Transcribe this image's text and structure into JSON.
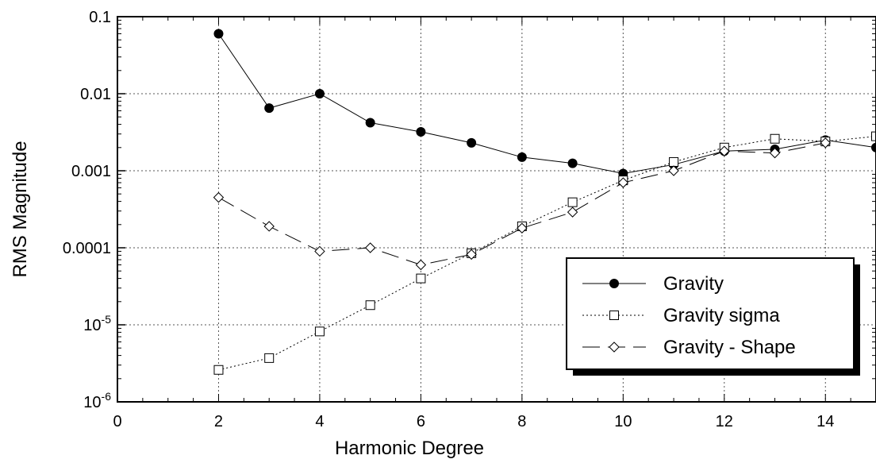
{
  "chart_data": {
    "type": "line",
    "xlabel": "Harmonic Degree",
    "ylabel": "RMS Magnitude",
    "xlim": [
      0,
      15
    ],
    "ylim": [
      1e-06,
      0.1
    ],
    "yscale": "log",
    "grid": true,
    "legend_position": "bottom-right",
    "x_ticks": [
      "0",
      "2",
      "4",
      "6",
      "8",
      "10",
      "12",
      "14"
    ],
    "y_ticks": [
      {
        "base": "10",
        "exp": "-6"
      },
      {
        "base": "10",
        "exp": "-5"
      },
      {
        "base": "0.0001",
        "exp": ""
      },
      {
        "base": "0.001",
        "exp": ""
      },
      {
        "base": "0.01",
        "exp": ""
      },
      {
        "base": "0.1",
        "exp": ""
      }
    ],
    "series": [
      {
        "name": "Gravity",
        "marker": "filled-circle",
        "line": "solid",
        "x": [
          2,
          3,
          4,
          5,
          6,
          7,
          8,
          9,
          10,
          11,
          12,
          13,
          14,
          15
        ],
        "y": [
          0.06,
          0.0065,
          0.01,
          0.0042,
          0.0032,
          0.0023,
          0.0015,
          0.00125,
          0.00092,
          0.0012,
          0.0018,
          0.0019,
          0.0025,
          0.002
        ]
      },
      {
        "name": "Gravity sigma",
        "marker": "open-square",
        "line": "dotted",
        "x": [
          2,
          3,
          4,
          5,
          6,
          7,
          8,
          9,
          10,
          11,
          12,
          13,
          14,
          15
        ],
        "y": [
          2.6e-06,
          3.7e-06,
          8.2e-06,
          1.8e-05,
          4e-05,
          8.5e-05,
          0.00019,
          0.00039,
          0.00075,
          0.0013,
          0.002,
          0.0026,
          0.0024,
          0.0028
        ]
      },
      {
        "name": "Gravity - Shape",
        "marker": "open-diamond",
        "line": "dashed",
        "x": [
          2,
          3,
          4,
          5,
          6,
          7,
          8,
          9,
          10,
          11,
          12,
          13,
          14
        ],
        "y": [
          0.00045,
          0.00019,
          9e-05,
          0.0001,
          6e-05,
          8.2e-05,
          0.00018,
          0.00029,
          0.0007,
          0.001,
          0.0018,
          0.0017,
          0.0023
        ]
      }
    ]
  }
}
